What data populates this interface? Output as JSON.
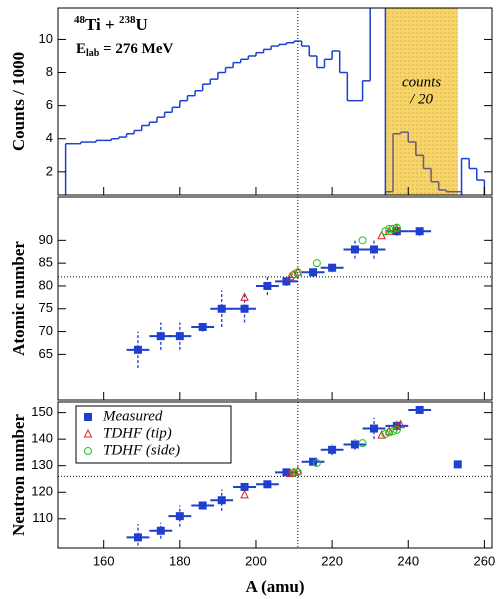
{
  "chart_data": [
    {
      "type": "histogram",
      "ylabel": "Counts / 1000",
      "reaction": [
        "48",
        "Ti + ",
        "238",
        "U"
      ],
      "energy": [
        "E",
        "lab",
        " = 276 MeV"
      ],
      "band_label": [
        "counts",
        "/ 20"
      ],
      "xlim": [
        148,
        262
      ],
      "xticks": [
        160,
        180,
        200,
        220,
        240,
        260
      ],
      "ylim": [
        0.6,
        11.9
      ],
      "yticks": [
        2,
        4,
        6,
        8,
        10
      ],
      "vline": 211,
      "color": "#1f3fcf",
      "bins": [
        150,
        152,
        154,
        156,
        158,
        160,
        162,
        164,
        166,
        168,
        170,
        172,
        174,
        176,
        178,
        180,
        182,
        184,
        186,
        188,
        190,
        192,
        194,
        196,
        198,
        200,
        202,
        204,
        206,
        208,
        210,
        212,
        214,
        216,
        218,
        220,
        222,
        224,
        226,
        228,
        230,
        232,
        234,
        236,
        238,
        240,
        242,
        244,
        246,
        248,
        250,
        252,
        254,
        256,
        258,
        260
      ],
      "values": [
        3.7,
        3.7,
        3.8,
        3.8,
        3.9,
        3.9,
        4.0,
        4.1,
        4.3,
        4.5,
        4.8,
        5.0,
        5.3,
        5.6,
        5.9,
        6.3,
        6.6,
        6.9,
        7.3,
        7.6,
        8.0,
        8.3,
        8.6,
        8.8,
        9.0,
        9.2,
        9.4,
        9.6,
        9.7,
        9.8,
        9.9,
        9.6,
        9.0,
        8.3,
        8.8,
        9.3,
        8.0,
        6.3,
        6.3,
        7.5,
        12,
        12,
        null,
        null,
        null,
        null,
        null,
        null,
        null,
        null,
        null,
        null,
        2.8,
        2.2,
        1.5
      ],
      "band": {
        "x": [
          234,
          253
        ],
        "color": "#f7d56a"
      },
      "overlay": {
        "color": "#6b5b7b",
        "bins": [
          234,
          236,
          238,
          240,
          242,
          244,
          246,
          248,
          250,
          252,
          254
        ],
        "values": [
          0.8,
          4.3,
          4.4,
          3.8,
          3.0,
          2.2,
          1.4,
          0.9,
          0.8,
          0.8
        ]
      }
    },
    {
      "type": "scatter",
      "ylabel": "Atomic number",
      "xlim": [
        148,
        262
      ],
      "xticks": [
        160,
        180,
        200,
        220,
        240,
        260
      ],
      "ylim": [
        55,
        99.5
      ],
      "yticks": [
        65,
        70,
        75,
        80,
        85,
        90
      ],
      "vline": 211,
      "hline": 82,
      "series": [
        {
          "color": "#1f3fcf",
          "marker": "square",
          "x": [
            169,
            175,
            180,
            186,
            191,
            197,
            203,
            208,
            215,
            220,
            226,
            231,
            237,
            243
          ],
          "values": [
            66,
            69,
            69,
            71,
            75,
            75,
            80,
            81,
            83,
            84,
            88,
            88,
            92,
            92
          ],
          "xerr": [
            3,
            3,
            3,
            3,
            3,
            3,
            3,
            3,
            3,
            3,
            3,
            3,
            3,
            3
          ],
          "yerr": [
            4,
            3,
            3,
            1,
            4,
            3,
            2,
            1,
            1,
            1,
            2,
            2,
            1,
            1
          ]
        },
        {
          "color": "#e02020",
          "marker": "triangle",
          "x": [
            197,
            209,
            210,
            211,
            233,
            235,
            237
          ],
          "values": [
            77.5,
            82,
            82.5,
            83,
            91,
            92,
            92.5
          ]
        },
        {
          "color": "#20c020",
          "marker": "circle",
          "x": [
            210,
            211,
            216,
            228,
            234,
            235,
            236,
            237
          ],
          "values": [
            82.5,
            83,
            85,
            90,
            92,
            92.5,
            92.5,
            92.8
          ]
        }
      ]
    },
    {
      "type": "scatter",
      "ylabel": "Neutron number",
      "xlabel": "A (amu)",
      "legend": "upper left",
      "xlim": [
        148,
        262
      ],
      "xticks": [
        160,
        180,
        200,
        220,
        240,
        260
      ],
      "ylim": [
        99,
        154
      ],
      "yticks": [
        110,
        120,
        130,
        140,
        150
      ],
      "vline": 211,
      "hline": 126,
      "series": [
        {
          "name": "Measured",
          "color": "#1f3fcf",
          "marker": "square",
          "x": [
            169,
            175,
            180,
            186,
            191,
            197,
            203,
            208,
            215,
            220,
            226,
            231,
            237,
            243,
            253
          ],
          "values": [
            103,
            105.5,
            111,
            115,
            117,
            122,
            123,
            127.5,
            131.5,
            136,
            138,
            144,
            145,
            151,
            130.5
          ],
          "xerr": [
            3,
            3,
            3,
            3,
            3,
            3,
            3,
            3,
            3,
            3,
            3,
            3,
            3,
            3,
            0
          ],
          "yerr": [
            5,
            3,
            4,
            1,
            4,
            1,
            1,
            1,
            1,
            2,
            2,
            4,
            2,
            1,
            0
          ]
        },
        {
          "name": "TDHF (tip)",
          "color": "#e02020",
          "marker": "triangle",
          "x": [
            197,
            209,
            210,
            211,
            233,
            235,
            237,
            238
          ],
          "values": [
            119,
            127,
            127.5,
            128,
            141.5,
            143,
            145,
            145.5
          ]
        },
        {
          "name": "TDHF (side)",
          "color": "#20c020",
          "marker": "circle",
          "x": [
            210,
            211,
            216,
            228,
            234,
            235,
            236,
            237
          ],
          "values": [
            127.5,
            127.5,
            131,
            138.5,
            142,
            142.5,
            143,
            143.5
          ]
        }
      ]
    }
  ]
}
